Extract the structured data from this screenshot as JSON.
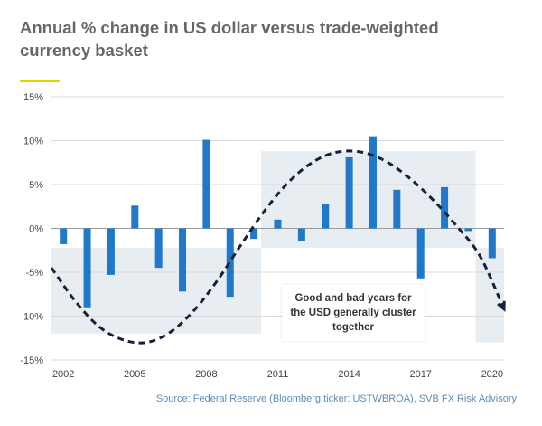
{
  "title": "Annual % change in US dollar versus trade-weighted currency basket",
  "source": "Source: Federal Reserve (Bloomberg ticker: USTWBROA), SVB FX Risk Advisory",
  "annotation": "Good and bad years for the USD generally cluster together",
  "colors": {
    "bar": "#1f78c8",
    "shade": "#e8edf2",
    "curve": "#16213a",
    "accent": "#e6d200",
    "text": "#666666",
    "source": "#5b8db8"
  },
  "chart_data": {
    "type": "bar",
    "title": "Annual % change in US dollar versus trade-weighted currency basket",
    "xlabel": "",
    "ylabel": "",
    "ylim": [
      -15,
      15
    ],
    "grid": true,
    "ytick_labels": [
      "15%",
      "10%",
      "5%",
      "0%",
      "-5%",
      "-10%",
      "-15%"
    ],
    "ytick_values": [
      15,
      10,
      5,
      0,
      -5,
      -10,
      -15
    ],
    "xtick_labels": [
      "2002",
      "2005",
      "2008",
      "2011",
      "2014",
      "2017",
      "2020"
    ],
    "xtick_values": [
      2002,
      2005,
      2008,
      2011,
      2014,
      2017,
      2020
    ],
    "x": [
      2002,
      2003,
      2004,
      2005,
      2006,
      2007,
      2008,
      2009,
      2010,
      2011,
      2012,
      2013,
      2014,
      2015,
      2016,
      2017,
      2018,
      2019,
      2020
    ],
    "values": [
      -1.8,
      -9.0,
      -5.3,
      2.6,
      -4.5,
      -7.2,
      10.1,
      -7.8,
      -1.2,
      1.0,
      -1.4,
      2.8,
      8.1,
      10.5,
      4.4,
      -5.7,
      4.7,
      -0.3,
      -3.4
    ],
    "shaded_regions": [
      {
        "x": [
          2001.5,
          2010.3
        ],
        "y": [
          -12,
          -2.2
        ]
      },
      {
        "x": [
          2010.3,
          2019.3
        ],
        "y": [
          -2.2,
          8.8
        ]
      },
      {
        "x": [
          2019.3,
          2020.5
        ],
        "y": [
          -13,
          -2.2
        ]
      }
    ],
    "trend_curve": {
      "style": "dashed",
      "points": [
        [
          2001.5,
          -4.5
        ],
        [
          2002.5,
          -8.3
        ],
        [
          2003.5,
          -11.2
        ],
        [
          2004.5,
          -12.7
        ],
        [
          2005.5,
          -13.0
        ],
        [
          2006.5,
          -11.8
        ],
        [
          2007.5,
          -9.3
        ],
        [
          2008.5,
          -5.8
        ],
        [
          2009.5,
          -1.7
        ],
        [
          2010.5,
          2.2
        ],
        [
          2011.5,
          5.4
        ],
        [
          2012.5,
          7.6
        ],
        [
          2013.5,
          8.7
        ],
        [
          2014.5,
          8.7
        ],
        [
          2015.5,
          7.7
        ],
        [
          2016.5,
          5.8
        ],
        [
          2017.5,
          3.3
        ],
        [
          2018.5,
          0.3
        ],
        [
          2019.5,
          -3.2
        ],
        [
          2020.5,
          -9.2
        ]
      ]
    }
  }
}
